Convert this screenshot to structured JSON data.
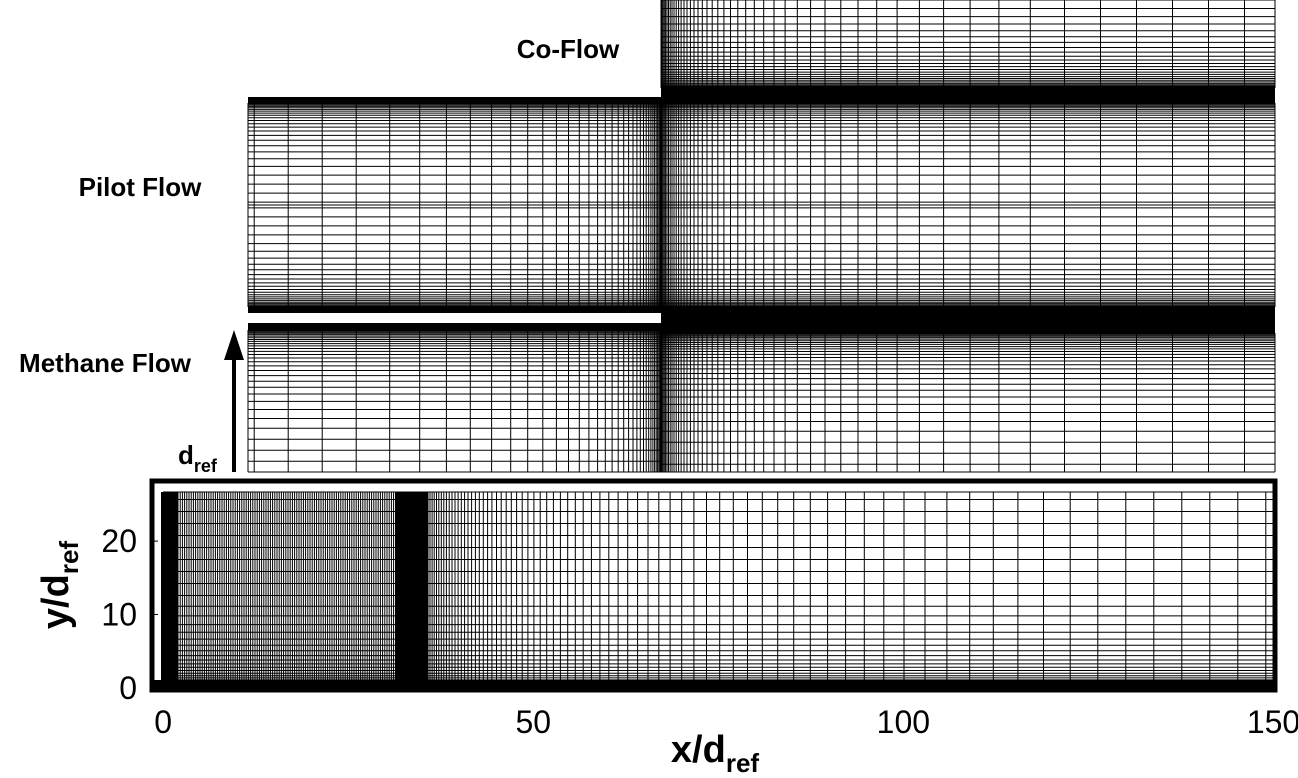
{
  "annotations": {
    "co_flow": "Co-Flow",
    "pilot_flow": "Pilot Flow",
    "methane_flow": "Methane Flow",
    "d_ref": {
      "main": "d",
      "sub": "ref"
    }
  },
  "chart_data": {
    "type": "mesh",
    "xlabel": {
      "main": "x/d",
      "sub": "ref"
    },
    "ylabel": {
      "main": "y/d",
      "sub": "ref"
    },
    "xlim": [
      -1.5,
      150.2
    ],
    "ylim": [
      -0.3,
      28.2
    ],
    "xticks": [
      0,
      50,
      100,
      150
    ],
    "yticks": [
      0,
      10,
      20
    ]
  }
}
